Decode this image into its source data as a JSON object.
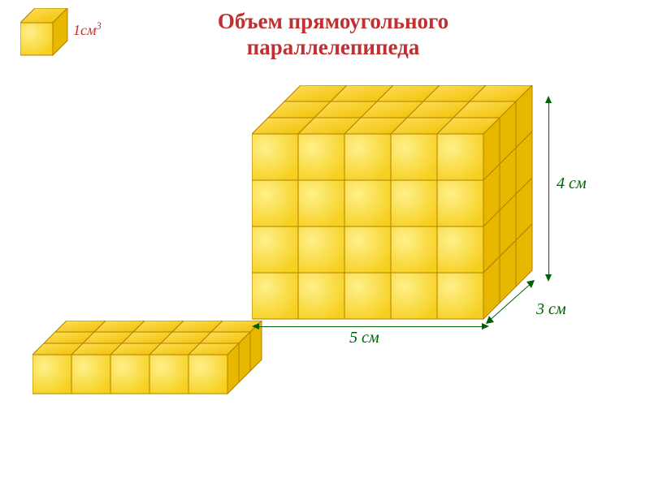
{
  "title_line1": "Объем прямоугольного",
  "title_line2": "параллелепипеда",
  "unit_label_html": "1см",
  "unit_exp": "3",
  "dim_width": "5 см",
  "dim_depth": "3 см",
  "dim_height": "4 см",
  "colors": {
    "title": "#c03030",
    "dim": "#006000",
    "cube_light": "#fff08a",
    "cube_dark": "#f6d020",
    "cube_top_light": "#ffe060",
    "cube_top_dark": "#f0c000",
    "cube_side": "#e8b800",
    "cube_stroke": "#b08000",
    "bg": "#ffffff"
  },
  "unit_cube": {
    "cell": 40,
    "skew": 18,
    "cols": 1,
    "rows": 1,
    "depth": 1
  },
  "main": {
    "cell": 57,
    "skew": 20,
    "cols": 5,
    "rows": 4,
    "depth": 3
  },
  "small": {
    "cell": 48,
    "skew": 14,
    "cols": 5,
    "rows": 1,
    "depth": 3
  },
  "typography": {
    "title_fontsize": 27,
    "label_fontsize": 20,
    "unit_fontsize": 18
  }
}
